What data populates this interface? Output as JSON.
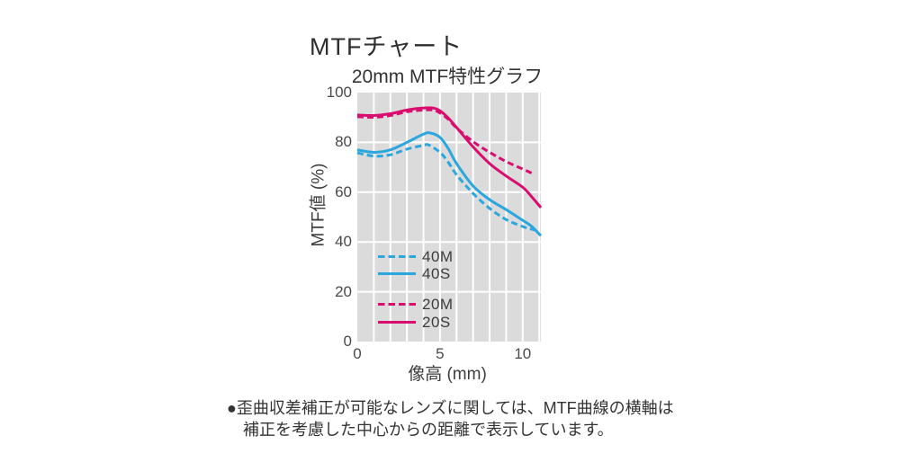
{
  "page": {
    "title": "MTFチャート",
    "footnote_line1": "●歪曲収差補正が可能なレンズに関しては、MTF曲線の横軸は",
    "footnote_line2": "補正を考慮した中心からの距離で表示しています。"
  },
  "chart_data": {
    "type": "line",
    "title": "20mm MTF特性グラフ",
    "xlabel": "像高 (mm)",
    "ylabel": "MTF値 (%)",
    "xlim": [
      0,
      11.1
    ],
    "ylim": [
      0,
      100
    ],
    "xticks": [
      0,
      5,
      10
    ],
    "yticks": [
      0,
      20,
      40,
      60,
      80,
      100
    ],
    "x_grid_step_mm": 1,
    "grid": true,
    "legend_position": "inside-left-lower",
    "colors": {
      "cyan40": "#2ba7de",
      "magenta20": "#d90d6e",
      "plot_bg": "#dbdbdb",
      "gridline": "#ffffff"
    },
    "series": [
      {
        "name": "40M",
        "style": "dashed",
        "color_key": "cyan40",
        "points": [
          [
            0,
            75.8
          ],
          [
            1,
            74.5
          ],
          [
            2,
            75.0
          ],
          [
            3,
            77.3
          ],
          [
            4,
            78.8
          ],
          [
            4.3,
            79.0
          ],
          [
            5,
            76.0
          ],
          [
            5.5,
            72.0
          ],
          [
            6,
            67.0
          ],
          [
            7,
            59.5
          ],
          [
            8,
            53.5
          ],
          [
            9,
            49.0
          ],
          [
            10,
            46.2
          ],
          [
            10.5,
            45.2
          ],
          [
            11.0,
            44.4
          ]
        ]
      },
      {
        "name": "40S",
        "style": "solid",
        "color_key": "cyan40",
        "points": [
          [
            0,
            77.0
          ],
          [
            1,
            76.0
          ],
          [
            2,
            77.0
          ],
          [
            3,
            80.0
          ],
          [
            4,
            83.3
          ],
          [
            4.4,
            83.8
          ],
          [
            5,
            82.0
          ],
          [
            5.5,
            77.5
          ],
          [
            6,
            71.5
          ],
          [
            7,
            62.5
          ],
          [
            8,
            57.0
          ],
          [
            9,
            53.0
          ],
          [
            10,
            48.7
          ],
          [
            10.5,
            46.5
          ],
          [
            11.1,
            42.5
          ]
        ]
      },
      {
        "name": "20M",
        "style": "dashed",
        "color_key": "magenta20",
        "points": [
          [
            0,
            90.3
          ],
          [
            1,
            90.1
          ],
          [
            2,
            90.8
          ],
          [
            3,
            92.3
          ],
          [
            4,
            93.0
          ],
          [
            4.6,
            93.0
          ],
          [
            5,
            91.8
          ],
          [
            5.5,
            89.3
          ],
          [
            6,
            85.8
          ],
          [
            7,
            80.3
          ],
          [
            8,
            76.0
          ],
          [
            9,
            72.3
          ],
          [
            10,
            69.3
          ],
          [
            10.7,
            67.2
          ]
        ]
      },
      {
        "name": "20S",
        "style": "solid",
        "color_key": "magenta20",
        "points": [
          [
            0,
            91.0
          ],
          [
            1,
            90.8
          ],
          [
            2,
            91.5
          ],
          [
            3,
            93.0
          ],
          [
            4,
            93.8
          ],
          [
            4.6,
            93.8
          ],
          [
            5,
            92.7
          ],
          [
            5.5,
            89.8
          ],
          [
            6,
            86.0
          ],
          [
            7,
            78.2
          ],
          [
            8,
            71.5
          ],
          [
            9,
            66.5
          ],
          [
            10,
            62.0
          ],
          [
            10.5,
            58.5
          ],
          [
            11.1,
            53.8
          ]
        ]
      }
    ]
  }
}
